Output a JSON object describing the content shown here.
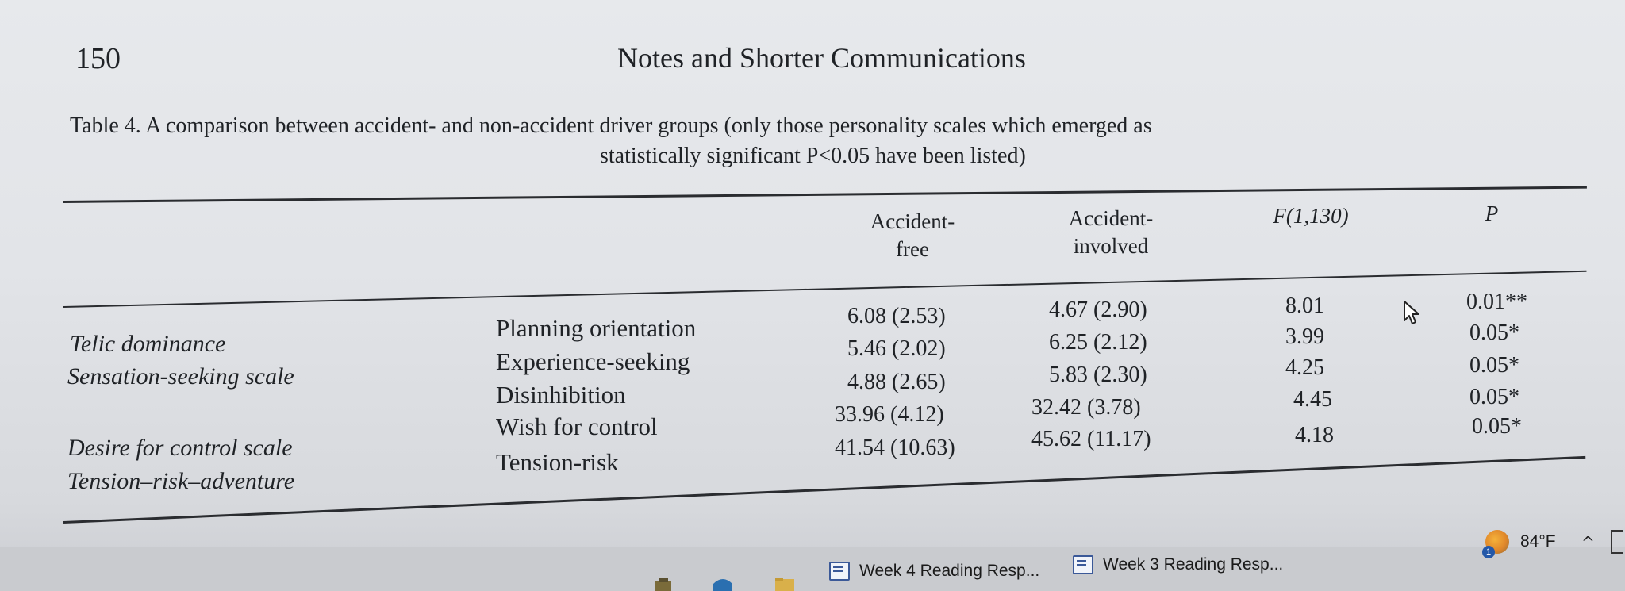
{
  "page": {
    "number": "150",
    "running_head": "Notes and Shorter Communications"
  },
  "table": {
    "caption_line1": "Table 4. A comparison between accident- and non-accident driver groups (only those personality scales which emerged as",
    "caption_line2": "statistically significant P<0.05 have been listed)",
    "headers": {
      "col1_line1": "Accident-",
      "col1_line2": "free",
      "col2_line1": "Accident-",
      "col2_line2": "involved",
      "col3": "F(1,130)",
      "col4": "P"
    },
    "scales": [
      "Telic dominance",
      "Sensation-seeking scale",
      "Desire for control scale",
      "Tension–risk–adventure"
    ],
    "rows": [
      {
        "subscale": "Planning orientation",
        "free": "6.08 (2.53)",
        "involved": "4.67 (2.90)",
        "f": "8.01",
        "p": "0.01**"
      },
      {
        "subscale": "Experience-seeking",
        "free": "5.46 (2.02)",
        "involved": "6.25 (2.12)",
        "f": "3.99",
        "p": "0.05*"
      },
      {
        "subscale": "Disinhibition",
        "free": "4.88 (2.65)",
        "involved": "5.83 (2.30)",
        "f": "4.25",
        "p": "0.05*"
      },
      {
        "subscale": "Wish for control",
        "free": "33.96 (4.12)",
        "involved": "32.42 (3.78)",
        "f": "4.45",
        "p": "0.05*"
      },
      {
        "subscale": "Tension-risk",
        "free": "41.54 (10.63)",
        "involved": "45.62 (11.17)",
        "f": "4.18",
        "p": "0.05*"
      }
    ]
  },
  "taskbar": {
    "items": [
      {
        "label": "Week 4 Reading Resp...",
        "icon": "word-document-icon"
      },
      {
        "label": "Week 3 Reading Resp...",
        "icon": "word-document-icon"
      }
    ],
    "weather": {
      "temperature": "84°F",
      "badge": "1",
      "icon": "weather-sun-icon"
    },
    "chevron": "^"
  }
}
